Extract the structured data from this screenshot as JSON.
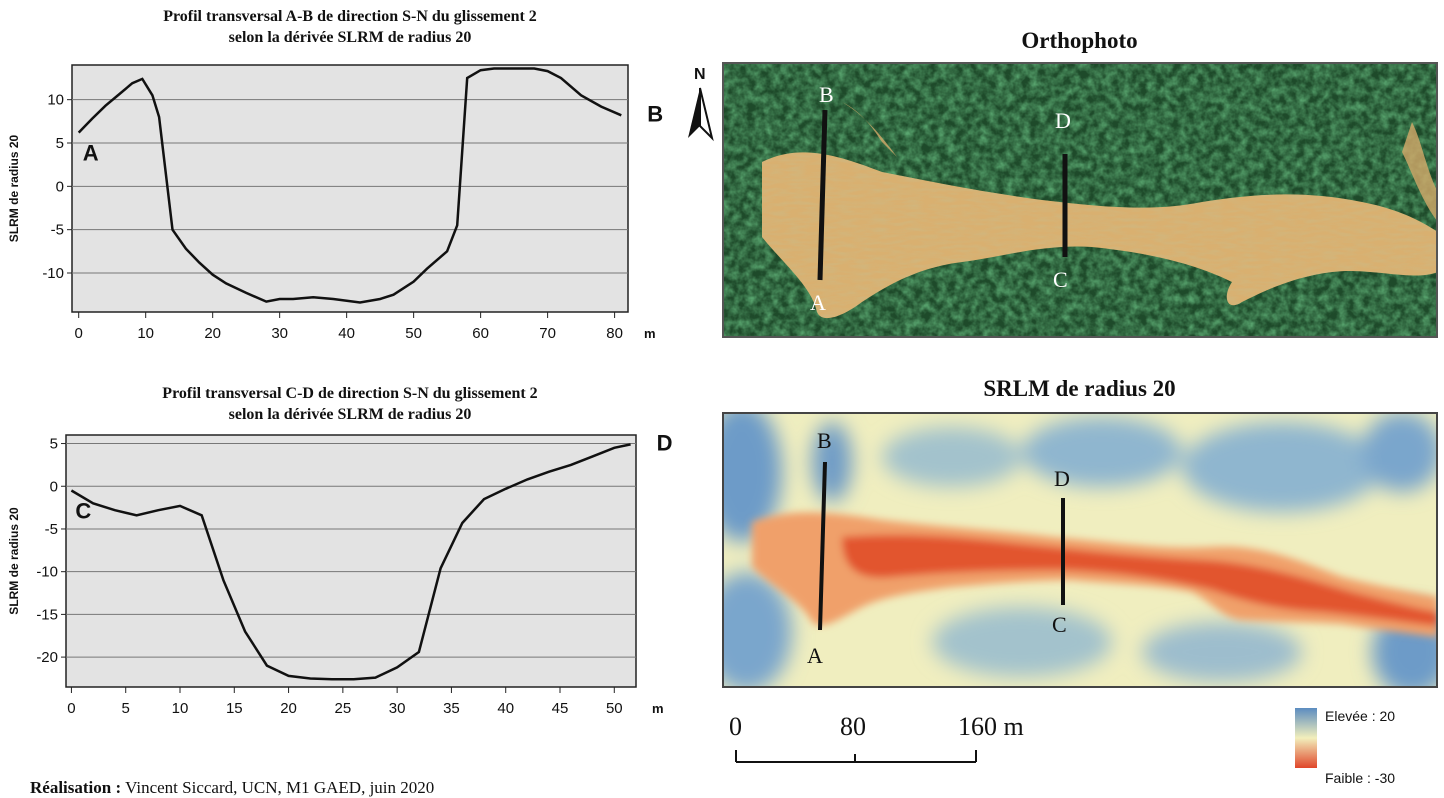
{
  "chart_data": [
    {
      "type": "line",
      "title": "Profil transversal A-B de direction S-N du glissement 2",
      "subtitle": "selon la dérivée SLRM de radius 20",
      "xlabel": "m",
      "ylabel": "SLRM de radius 20",
      "xlim": [
        -1,
        82
      ],
      "ylim": [
        -14.5,
        14
      ],
      "xticks": [
        "0",
        "10",
        "20",
        "30",
        "40",
        "50",
        "60",
        "70",
        "80"
      ],
      "yticks": [
        "10",
        "5",
        "0",
        "-5",
        "-10"
      ],
      "grid": true,
      "start_label": "A",
      "end_label": "B",
      "series": [
        {
          "x": [
            0,
            2,
            4,
            6,
            8,
            9.5,
            11,
            12,
            14,
            16,
            18,
            20,
            22,
            25,
            28,
            30,
            32,
            35,
            38,
            42,
            45,
            47,
            50,
            52,
            55,
            56.5,
            58,
            60,
            62,
            65,
            68,
            70,
            72,
            75,
            78,
            81
          ],
          "values": [
            6.2,
            7.8,
            9.3,
            10.6,
            11.9,
            12.4,
            10.5,
            8,
            -5,
            -7.2,
            -8.8,
            -10.2,
            -11.2,
            -12.3,
            -13.3,
            -13,
            -13,
            -12.8,
            -13,
            -13.4,
            -13,
            -12.5,
            -11,
            -9.5,
            -7.5,
            -4.5,
            12.5,
            13.4,
            13.6,
            13.6,
            13.6,
            13.3,
            12.5,
            10.5,
            9.2,
            8.2
          ]
        }
      ]
    },
    {
      "type": "line",
      "title": "Profil transversal C-D de direction S-N du glissement 2",
      "subtitle": "selon la dérivée SLRM de radius 20",
      "xlabel": "m",
      "ylabel": "SLRM de radius 20",
      "xlim": [
        -0.5,
        52
      ],
      "ylim": [
        -23.5,
        6
      ],
      "xticks": [
        "0",
        "5",
        "10",
        "15",
        "20",
        "25",
        "30",
        "35",
        "40",
        "45",
        "50"
      ],
      "yticks": [
        "5",
        "0",
        "-5",
        "-10",
        "-15",
        "-20"
      ],
      "grid": true,
      "start_label": "C",
      "end_label": "D",
      "series": [
        {
          "x": [
            0,
            2,
            4,
            6,
            8,
            10,
            12,
            14,
            16,
            18,
            20,
            22,
            24,
            26,
            28,
            30,
            32,
            34,
            36,
            38,
            40,
            42,
            44,
            46,
            48,
            50,
            51.5
          ],
          "values": [
            -0.5,
            -2,
            -2.8,
            -3.4,
            -2.8,
            -2.3,
            -3.4,
            -11,
            -17,
            -21,
            -22.2,
            -22.5,
            -22.6,
            -22.6,
            -22.4,
            -21.2,
            -19.4,
            -9.6,
            -4.3,
            -1.5,
            -0.3,
            0.8,
            1.7,
            2.5,
            3.5,
            4.5,
            4.9
          ]
        }
      ]
    }
  ],
  "maps": {
    "ortho_title": "Orthophoto",
    "srlm_title": "SRLM de radius 20",
    "north_label": "N",
    "profile_labels": {
      "A": "A",
      "B": "B",
      "C": "C",
      "D": "D"
    }
  },
  "scale_bar": {
    "labels": [
      "0",
      "80",
      "160 m"
    ]
  },
  "legend": {
    "high_label": "Elevée : 20",
    "low_label": "Faible : -30",
    "colors": {
      "high": "#5b8cc0",
      "mid": "#f2efbc",
      "low": "#e0462a"
    }
  },
  "credit": {
    "label": "Réalisation :",
    "text": "Vincent Siccard, UCN, M1 GAED, juin 2020"
  }
}
